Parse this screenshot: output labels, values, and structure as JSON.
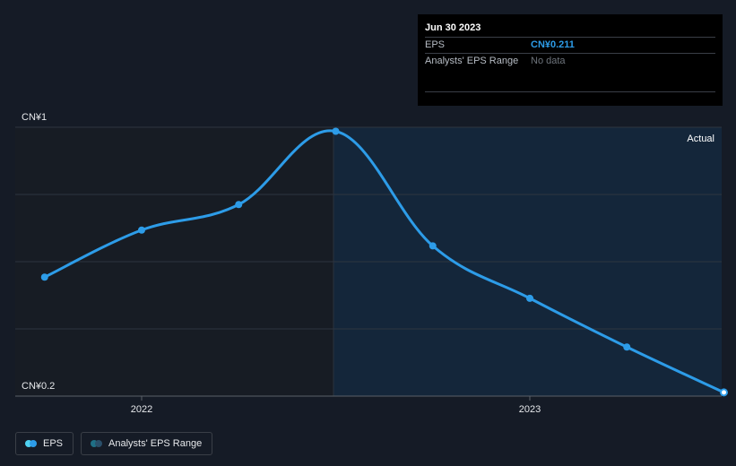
{
  "chart_data": {
    "type": "line",
    "title": "",
    "xlabel": "",
    "ylabel": "",
    "ylim": [
      0.2,
      1.0
    ],
    "y_tick_labels": [
      "CN¥1",
      "CN¥0.2"
    ],
    "x_tick_labels": [
      "2022",
      "2023"
    ],
    "x_ticks": [
      2022.0,
      2023.0
    ],
    "region_label": "Actual",
    "series": [
      {
        "name": "EPS",
        "color": "#2d9ce8",
        "x": [
          2021.75,
          2022.0,
          2022.25,
          2022.5,
          2022.75,
          2023.0,
          2023.25,
          2023.5
        ],
        "y": [
          0.554,
          0.694,
          0.77,
          0.988,
          0.647,
          0.491,
          0.346,
          0.211
        ]
      }
    ],
    "grid": true,
    "legend": "bottom-left"
  },
  "tooltip": {
    "date": "Jun 30 2023",
    "rows": [
      {
        "label": "EPS",
        "value": "CN¥0.211"
      },
      {
        "label": "Analysts' EPS Range",
        "value": "No data"
      }
    ]
  },
  "legend": {
    "items": [
      {
        "label": "EPS",
        "colors": [
          "#4fd1f0",
          "#2d9ce8"
        ]
      },
      {
        "label": "Analysts' EPS Range",
        "colors": [
          "#1f6f86",
          "#2a4f6a"
        ]
      }
    ]
  }
}
